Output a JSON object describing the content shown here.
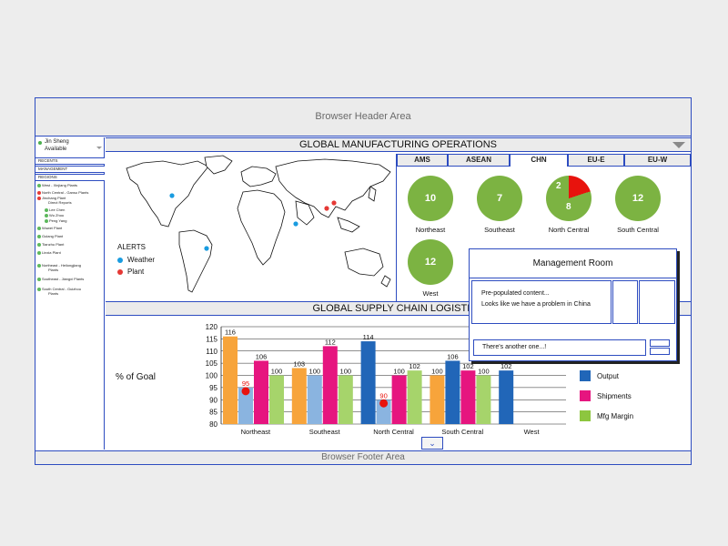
{
  "browser": {
    "header": "Browser Header Area",
    "footer": "Browser Footer Area"
  },
  "user": {
    "name": "Jin Sheng",
    "status": "Available"
  },
  "sidebar": {
    "sections": [
      "RECENTS",
      "MANAGEMENT",
      "REGIONS"
    ],
    "tree": [
      "West - Xinjiang Plants",
      "North Central - Gansu Plants",
      "Jinchang Plant",
      "Direct Reports",
      "Lee Chen",
      "Wu Zhou",
      "Peng Yang",
      "Wuwei Plant",
      "Gulang Plant",
      "Tianzhu Plant",
      "Linxia Plant",
      "Northeast - Heilongjiang",
      "Plants",
      "Southeast - Jiangxi Plants",
      "South Central - Guizhou",
      "Plants"
    ]
  },
  "ops": {
    "title": "GLOBAL MANUFACTURING OPERATIONS"
  },
  "alerts": {
    "title": "ALERTS",
    "weather": "Weather",
    "plant": "Plant"
  },
  "tabs": [
    "AMS",
    "ASEAN",
    "CHN",
    "EU-E",
    "EU-W"
  ],
  "regions": [
    {
      "name": "Northeast",
      "value": "10"
    },
    {
      "name": "Southeast",
      "value": "7"
    },
    {
      "name": "North Central",
      "value": "8",
      "alert": "2"
    },
    {
      "name": "South Central",
      "value": "12"
    },
    {
      "name": "West",
      "value": "12"
    }
  ],
  "supply": {
    "title": "GLOBAL SUPPLY CHAIN LOGISTICS"
  },
  "popup": {
    "title": "Management Room",
    "line1": "Pre-populated content...",
    "line2": "Looks like we have a problem in China",
    "input": "There's another one...!"
  },
  "colors": {
    "blue": "#2166b8",
    "pink": "#e6157f",
    "green": "#8dc63f",
    "orange": "#f7a43b",
    "red": "#e8130d"
  },
  "chart_data": {
    "type": "bar",
    "ylabel": "% of Goal",
    "ylim": [
      80,
      120
    ],
    "yticks": [
      80,
      85,
      90,
      95,
      100,
      105,
      110,
      115,
      120
    ],
    "categories": [
      "Northeast",
      "Southeast",
      "North Central",
      "South Central",
      "West"
    ],
    "series": [
      {
        "name": "Output",
        "values": [
          116,
          103,
          114,
          100,
          102
        ],
        "labels": [
          "116",
          "103",
          "114",
          "100",
          "102"
        ]
      },
      {
        "name": "",
        "values": [
          95,
          100,
          90,
          106,
          null
        ],
        "labels": [
          "95",
          "100",
          "90",
          "106",
          ""
        ]
      },
      {
        "name": "Shipments",
        "values": [
          106,
          112,
          100,
          102,
          null
        ],
        "labels": [
          "106",
          "112",
          "100",
          "102",
          ""
        ]
      },
      {
        "name": "Mfg Margin",
        "values": [
          100,
          100,
          102,
          100,
          null
        ],
        "labels": [
          "100",
          "100",
          "102",
          "100",
          ""
        ]
      }
    ],
    "legend": [
      "Output",
      "Shipments",
      "Mfg Margin"
    ]
  }
}
